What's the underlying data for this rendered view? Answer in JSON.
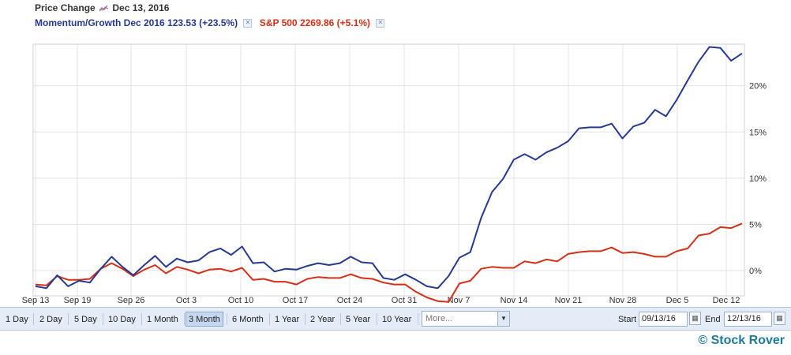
{
  "header": {
    "title": "Price Change",
    "date": "Dec 13, 2016"
  },
  "chart_data": {
    "type": "line",
    "x_ticks": [
      "Sep 13",
      "Sep 19",
      "Sep 26",
      "Oct 3",
      "Oct 10",
      "Oct 17",
      "Oct 24",
      "Oct 31",
      "Nov 7",
      "Nov 14",
      "Nov 21",
      "Nov 28",
      "Dec 5",
      "Dec 12"
    ],
    "y_ticks": [
      "0%",
      "5%",
      "10%",
      "15%",
      "20%"
    ],
    "ylim": [
      -3.5,
      24.5
    ],
    "y_unit": "%",
    "grid": true,
    "legend_position": "top-left",
    "series": [
      {
        "name": "Momentum/Growth",
        "legend": "Momentum/Growth Dec 2016 123.53 (+23.5%)",
        "color": "#253993",
        "values": [
          -1.7,
          -1.9,
          -0.5,
          -1.7,
          -1.1,
          -1.3,
          0.2,
          1.5,
          0.4,
          -0.5,
          0.6,
          1.6,
          0.4,
          1.3,
          0.9,
          1.1,
          2.0,
          2.4,
          1.7,
          2.6,
          0.8,
          0.9,
          -0.1,
          0.2,
          0.1,
          0.5,
          0.8,
          0.6,
          0.8,
          1.5,
          0.9,
          0.8,
          -0.8,
          -1.0,
          -0.4,
          -1.0,
          -1.7,
          -1.9,
          -0.6,
          1.4,
          2.0,
          5.7,
          8.5,
          9.9,
          12.0,
          12.6,
          12.0,
          12.8,
          13.3,
          14.0,
          15.4,
          15.5,
          15.5,
          15.9,
          14.3,
          15.6,
          16.0,
          17.4,
          16.7,
          18.5,
          20.6,
          22.6,
          24.2,
          24.1,
          22.7,
          23.5
        ]
      },
      {
        "name": "S&P 500",
        "legend": "S&P 500 2269.86 (+5.1%)",
        "color": "#d62f16",
        "values": [
          -1.5,
          -1.6,
          -0.6,
          -1.0,
          -1.0,
          -0.9,
          0.2,
          0.8,
          0.2,
          -0.6,
          0.1,
          0.6,
          -0.3,
          0.4,
          0.1,
          -0.3,
          0.1,
          0.2,
          -0.1,
          0.3,
          -1.0,
          -0.9,
          -1.2,
          -1.2,
          -1.5,
          -0.9,
          -0.7,
          -0.8,
          -0.8,
          -0.4,
          -0.8,
          -0.9,
          -1.3,
          -1.5,
          -1.5,
          -2.3,
          -2.9,
          -3.3,
          -3.4,
          -1.4,
          -1.1,
          0.2,
          0.4,
          0.3,
          0.3,
          1.0,
          0.8,
          1.2,
          1.0,
          1.8,
          2.0,
          2.1,
          2.1,
          2.5,
          1.9,
          2.0,
          1.8,
          1.5,
          1.5,
          2.1,
          2.4,
          3.8,
          4.0,
          4.7,
          4.6,
          5.1
        ]
      }
    ]
  },
  "toolbar": {
    "ranges": [
      "1 Day",
      "2 Day",
      "5 Day",
      "10 Day",
      "1 Month",
      "3 Month",
      "6 Month",
      "1 Year",
      "2 Year",
      "5 Year",
      "10 Year"
    ],
    "active_range": "3 Month",
    "more_placeholder": "More...",
    "start_label": "Start",
    "start_value": "09/13/16",
    "end_label": "End",
    "end_value": "12/13/16"
  },
  "footer": {
    "copyright": "© Stock Rover"
  },
  "colors": {
    "toolbar_bg": "#e4ecf7",
    "brand": "#1d7a9c"
  }
}
